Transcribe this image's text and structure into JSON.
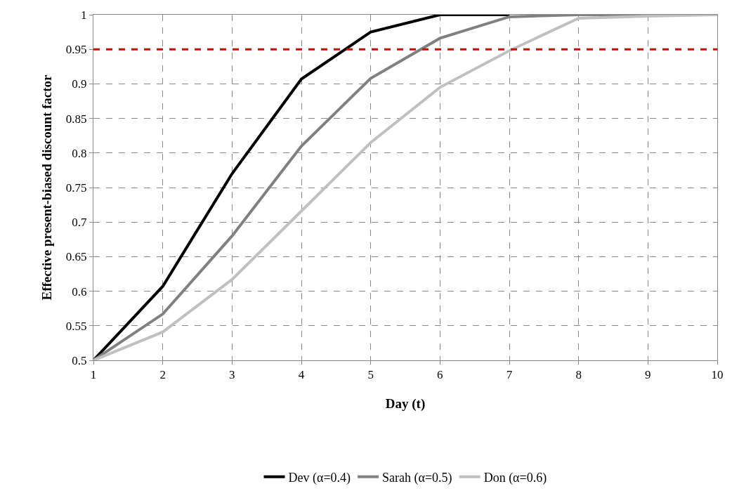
{
  "chart_data": {
    "type": "line",
    "xlabel": "Day (t)",
    "ylabel": "Effective present-biased discount factor",
    "x": [
      1,
      2,
      3,
      4,
      5,
      6,
      7,
      8,
      9,
      10
    ],
    "series": [
      {
        "name": "Dev (α=0.4)",
        "color": "#000000",
        "values": [
          0.5,
          0.607,
          0.77,
          0.907,
          0.975,
          1,
          1,
          null,
          null,
          null
        ]
      },
      {
        "name": "Sarah (α=0.5)",
        "color": "#808080",
        "values": [
          0.5,
          0.567,
          0.68,
          0.81,
          0.908,
          0.966,
          0.997,
          1,
          1,
          1
        ]
      },
      {
        "name": "Don (α=0.6)",
        "color": "#c0c0c0",
        "values": [
          0.5,
          0.541,
          0.617,
          0.716,
          0.815,
          0.895,
          0.948,
          0.995,
          0.998,
          1
        ]
      }
    ],
    "xlim": [
      1,
      10
    ],
    "xticks": [
      1,
      2,
      3,
      4,
      5,
      6,
      7,
      8,
      9,
      10
    ],
    "ylim": [
      0.5,
      1
    ],
    "yticks": [
      0.5,
      0.55,
      0.6,
      0.65,
      0.7,
      0.75,
      0.8,
      0.85,
      0.9,
      0.95,
      1
    ],
    "ref_lines": [
      {
        "axis": "y",
        "value": 0.95,
        "color": "#e00000",
        "line_style": "dashed"
      }
    ],
    "grid": true,
    "legend": "bottom",
    "marker": "none",
    "line_style": "solid"
  }
}
